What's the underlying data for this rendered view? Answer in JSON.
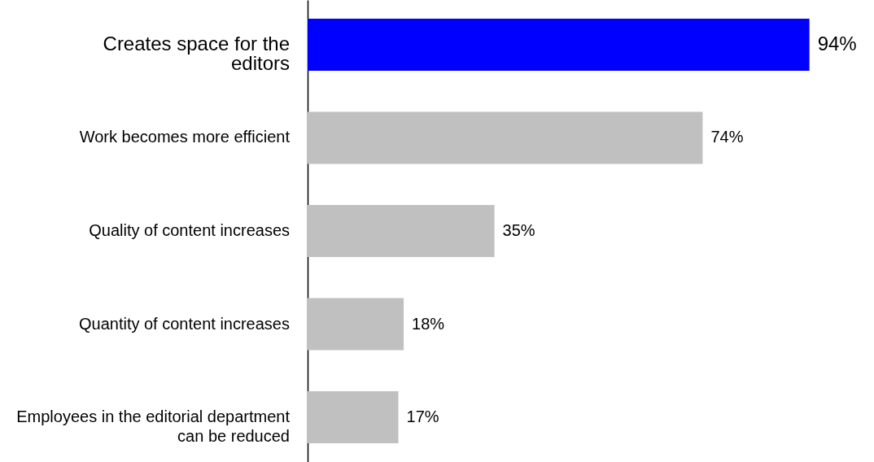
{
  "chart_data": {
    "type": "bar",
    "orientation": "horizontal",
    "categories": [
      "Creates space for the editors",
      "Work becomes more efficient",
      "Quality of content increases",
      "Quantity of content increases",
      "Employees in the editorial department can be reduced"
    ],
    "values": [
      94,
      74,
      35,
      18,
      17
    ],
    "value_labels": [
      "94%",
      "74%",
      "35%",
      "18%",
      "17%"
    ],
    "colors": [
      "#0000ff",
      "#c0c0c0",
      "#c0c0c0",
      "#c0c0c0",
      "#c0c0c0"
    ]
  }
}
